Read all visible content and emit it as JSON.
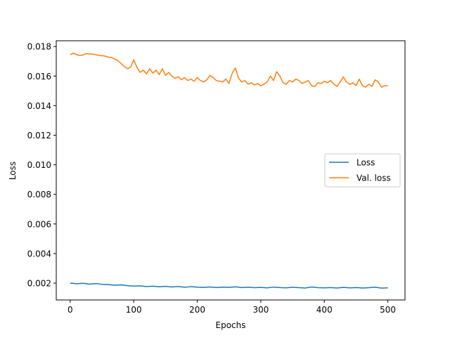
{
  "chart_data": {
    "type": "line",
    "title": "",
    "xlabel": "Epochs",
    "ylabel": "Loss",
    "xlim": [
      -22,
      527
    ],
    "ylim": [
      0.00086,
      0.01839
    ],
    "x_ticks": [
      0,
      100,
      200,
      300,
      400,
      500
    ],
    "x_tick_labels": [
      "0",
      "100",
      "200",
      "300",
      "400",
      "500"
    ],
    "y_ticks": [
      0.002,
      0.004,
      0.006,
      0.008,
      0.01,
      0.012,
      0.014,
      0.016,
      0.018
    ],
    "y_tick_labels": [
      "0.002",
      "0.004",
      "0.006",
      "0.008",
      "0.010",
      "0.012",
      "0.014",
      "0.016",
      "0.018"
    ],
    "grid": false,
    "legend_position": "center-right",
    "series": [
      {
        "name": "Loss",
        "color": "#1f77b4",
        "x": [
          0,
          10,
          20,
          30,
          40,
          50,
          60,
          70,
          80,
          90,
          100,
          110,
          120,
          130,
          140,
          150,
          160,
          170,
          180,
          190,
          200,
          210,
          220,
          230,
          240,
          250,
          260,
          270,
          280,
          290,
          300,
          310,
          320,
          330,
          340,
          350,
          360,
          370,
          380,
          390,
          400,
          410,
          420,
          430,
          440,
          450,
          460,
          470,
          480,
          490,
          500
        ],
        "y": [
          0.002,
          0.00196,
          0.00199,
          0.00193,
          0.00197,
          0.00192,
          0.0019,
          0.00186,
          0.00188,
          0.00183,
          0.0018,
          0.00181,
          0.00177,
          0.00179,
          0.00175,
          0.00178,
          0.00174,
          0.00177,
          0.00172,
          0.00176,
          0.00173,
          0.00171,
          0.00174,
          0.0017,
          0.00173,
          0.00171,
          0.00175,
          0.0017,
          0.00172,
          0.00169,
          0.00171,
          0.00168,
          0.00173,
          0.0017,
          0.00168,
          0.00172,
          0.00169,
          0.00167,
          0.00174,
          0.00169,
          0.00168,
          0.0017,
          0.00167,
          0.00171,
          0.00168,
          0.0017,
          0.00167,
          0.00169,
          0.00172,
          0.00166,
          0.00168
        ]
      },
      {
        "name": "Val. loss",
        "color": "#ff7f0e",
        "x": [
          0,
          5,
          10,
          15,
          20,
          25,
          30,
          35,
          40,
          45,
          50,
          55,
          60,
          65,
          70,
          75,
          80,
          85,
          90,
          95,
          100,
          105,
          110,
          115,
          120,
          125,
          130,
          135,
          140,
          145,
          150,
          155,
          160,
          165,
          170,
          175,
          180,
          185,
          190,
          195,
          200,
          205,
          210,
          215,
          220,
          225,
          230,
          235,
          240,
          245,
          250,
          255,
          260,
          265,
          270,
          275,
          280,
          285,
          290,
          295,
          300,
          305,
          310,
          315,
          320,
          325,
          330,
          335,
          340,
          345,
          350,
          355,
          360,
          365,
          370,
          375,
          380,
          385,
          390,
          395,
          400,
          405,
          410,
          415,
          420,
          425,
          430,
          435,
          440,
          445,
          450,
          455,
          460,
          465,
          470,
          475,
          480,
          485,
          490,
          495,
          500
        ],
        "y": [
          0.01745,
          0.01755,
          0.01745,
          0.0174,
          0.01742,
          0.01752,
          0.0175,
          0.01748,
          0.01745,
          0.0174,
          0.01738,
          0.01735,
          0.01728,
          0.01725,
          0.01715,
          0.01705,
          0.01685,
          0.01665,
          0.0165,
          0.0166,
          0.0171,
          0.0166,
          0.01625,
          0.0164,
          0.01615,
          0.0165,
          0.0162,
          0.0164,
          0.0161,
          0.0165,
          0.01605,
          0.01625,
          0.016,
          0.01585,
          0.01595,
          0.01575,
          0.0159,
          0.0157,
          0.0158,
          0.01565,
          0.0159,
          0.0157,
          0.0156,
          0.01575,
          0.01605,
          0.0159,
          0.0157,
          0.01565,
          0.0156,
          0.0158,
          0.0155,
          0.0162,
          0.01655,
          0.01585,
          0.0156,
          0.0157,
          0.01545,
          0.01555,
          0.0154,
          0.0155,
          0.01535,
          0.01545,
          0.0156,
          0.016,
          0.0157,
          0.0163,
          0.016,
          0.01555,
          0.01545,
          0.0157,
          0.0156,
          0.0158,
          0.0157,
          0.0155,
          0.0156,
          0.0157,
          0.01535,
          0.0153,
          0.01555,
          0.0155,
          0.01565,
          0.01555,
          0.0157,
          0.01545,
          0.0153,
          0.0156,
          0.01595,
          0.0156,
          0.01545,
          0.01555,
          0.01535,
          0.0158,
          0.01535,
          0.01525,
          0.01545,
          0.0153,
          0.01575,
          0.0156,
          0.01525,
          0.01535,
          0.01535
        ]
      }
    ]
  }
}
